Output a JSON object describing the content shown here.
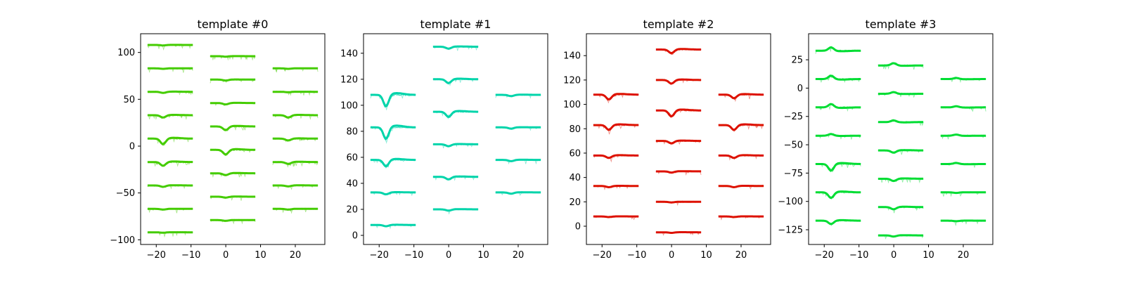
{
  "chart_data": [
    {
      "type": "line",
      "title": "template #0",
      "color": "#44cc00",
      "xlim": [
        -24.5,
        28.5
      ],
      "ylim": [
        -105,
        120
      ],
      "xticks": [
        -20,
        -10,
        0,
        10,
        20
      ],
      "yticks": [
        -100,
        -50,
        0,
        50,
        100
      ],
      "groups": [
        {
          "x_center": -16,
          "offsets": [
            108,
            83,
            58,
            33,
            8,
            -17,
            -42,
            -67,
            -92
          ],
          "dips": [
            0.5,
            0.5,
            1.2,
            2.5,
            6,
            4,
            1.5,
            0.8,
            0.5
          ]
        },
        {
          "x_center": 2,
          "offsets": [
            96,
            71,
            46,
            21,
            -4,
            -29,
            -54,
            -79
          ],
          "dips": [
            0.5,
            1,
            1.5,
            4,
            5,
            2,
            1,
            0.8
          ]
        },
        {
          "x_center": 20,
          "offsets": [
            83,
            58,
            33,
            8,
            -17,
            -42,
            -67
          ],
          "dips": [
            0.5,
            0.5,
            2.5,
            2,
            2,
            1,
            0.8
          ]
        }
      ]
    },
    {
      "type": "line",
      "title": "template #1",
      "color": "#00d4aa",
      "xlim": [
        -24.5,
        28.5
      ],
      "ylim": [
        -7,
        155
      ],
      "xticks": [
        -20,
        -10,
        0,
        10,
        20
      ],
      "yticks": [
        0,
        20,
        40,
        60,
        80,
        100,
        120,
        140
      ],
      "groups": [
        {
          "x_center": -16,
          "offsets": [
            108,
            83,
            58,
            33,
            8
          ],
          "dips": [
            9,
            9,
            5,
            1.5,
            1
          ]
        },
        {
          "x_center": 2,
          "offsets": [
            145,
            120,
            95,
            70,
            45,
            20
          ],
          "dips": [
            1.5,
            3,
            4,
            1.5,
            2,
            1
          ]
        },
        {
          "x_center": 20,
          "offsets": [
            108,
            83,
            58,
            33
          ],
          "dips": [
            1,
            1,
            1,
            1
          ]
        }
      ]
    },
    {
      "type": "line",
      "title": "template #2",
      "color": "#dd1100",
      "xlim": [
        -24.5,
        28.5
      ],
      "ylim": [
        -15,
        158
      ],
      "xticks": [
        -20,
        -10,
        0,
        10,
        20
      ],
      "yticks": [
        0,
        20,
        40,
        60,
        80,
        100,
        120,
        140
      ],
      "groups": [
        {
          "x_center": -16,
          "offsets": [
            108,
            83,
            58,
            33,
            8
          ],
          "dips": [
            4,
            4,
            2,
            1,
            0.5
          ]
        },
        {
          "x_center": 2,
          "offsets": [
            145,
            120,
            95,
            70,
            45,
            20,
            -5
          ],
          "dips": [
            3,
            3,
            5,
            2,
            1,
            0.5,
            0.5
          ]
        },
        {
          "x_center": 20,
          "offsets": [
            108,
            83,
            58,
            33,
            8
          ],
          "dips": [
            3,
            4,
            2,
            1,
            0.5
          ]
        }
      ]
    },
    {
      "type": "line",
      "title": "template #3",
      "color": "#00dd33",
      "xlim": [
        -24.5,
        28.5
      ],
      "ylim": [
        -138,
        48
      ],
      "xticks": [
        -20,
        -10,
        0,
        10,
        20
      ],
      "yticks": [
        -125,
        -100,
        -75,
        -50,
        -25,
        0,
        25
      ],
      "groups": [
        {
          "x_center": -16,
          "offsets": [
            33,
            8,
            -17,
            -42,
            -67,
            -92,
            -117
          ],
          "dips": [
            -3,
            -3,
            -3,
            -1.5,
            6,
            5,
            3
          ]
        },
        {
          "x_center": 2,
          "offsets": [
            20,
            -5,
            -30,
            -55,
            -80,
            -105,
            -130
          ],
          "dips": [
            -2,
            -1.5,
            -1.5,
            2,
            2,
            2,
            1
          ]
        },
        {
          "x_center": 20,
          "offsets": [
            8,
            -17,
            -42,
            -67,
            -92,
            -117
          ],
          "dips": [
            -1,
            -1,
            -1,
            -1,
            0.5,
            0.5
          ]
        }
      ]
    }
  ]
}
